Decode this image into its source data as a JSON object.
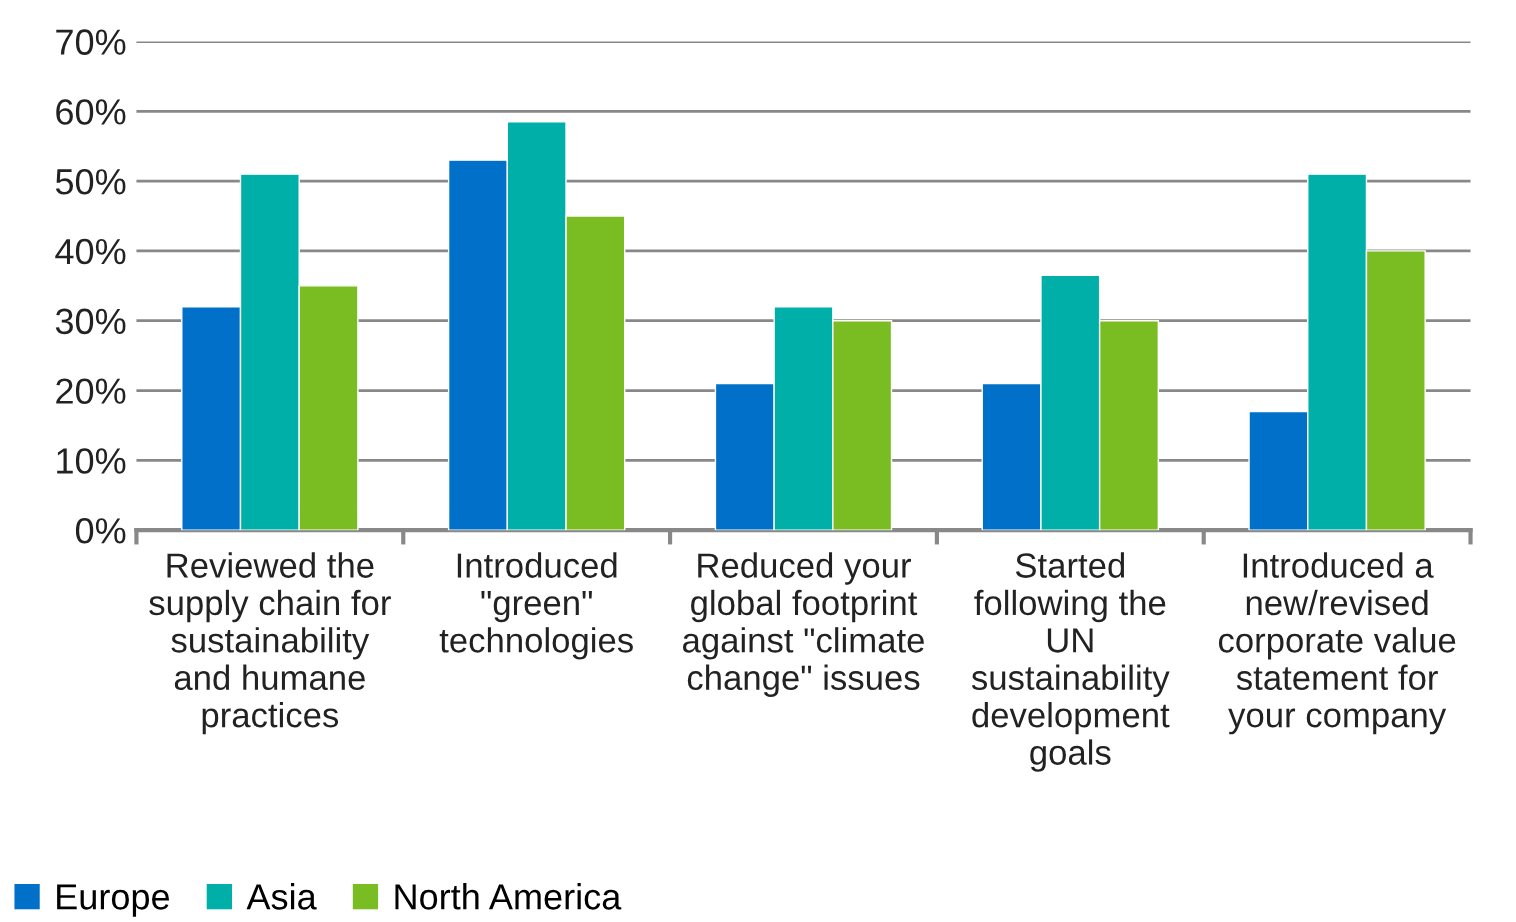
{
  "chart_data": {
    "type": "bar",
    "categories": [
      "Reviewed the\nsupply chain for\nsustainability\nand humane\npractices",
      "Introduced\n\"green\"\ntechnologies",
      "Reduced your\nglobal footprint\nagainst \"climate\nchange\" issues",
      "Started\nfollowing the\nUN\nsustainability\ndevelopment\ngoals",
      "Introduced a\nnew/revised\ncorporate value\nstatement for\nyour company"
    ],
    "series": [
      {
        "name": "Europe",
        "color": "#0070c9",
        "values": [
          32,
          53,
          21,
          21,
          17
        ]
      },
      {
        "name": "Asia",
        "color": "#00b0a8",
        "values": [
          51,
          58.5,
          32,
          36.5,
          51
        ]
      },
      {
        "name": "North America",
        "color": "#7abd23",
        "values": [
          35,
          45,
          30,
          30,
          40
        ]
      }
    ],
    "ylim": [
      0,
      70
    ],
    "yticks": [
      {
        "value": 0,
        "label": "0%"
      },
      {
        "value": 10,
        "label": "10%"
      },
      {
        "value": 20,
        "label": "20%"
      },
      {
        "value": 30,
        "label": "30%"
      },
      {
        "value": 40,
        "label": "40%"
      },
      {
        "value": 50,
        "label": "50%"
      },
      {
        "value": 60,
        "label": "60%"
      },
      {
        "value": 70,
        "label": "70%"
      }
    ],
    "grid": "y",
    "legend": "bottom left"
  }
}
